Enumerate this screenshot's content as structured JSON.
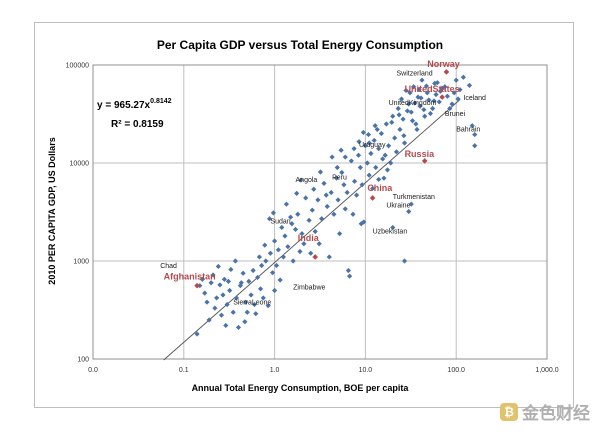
{
  "chart_data": {
    "type": "scatter",
    "title": "Per Capita GDP versus Total Energy Consumption",
    "xlabel": "Annual Total Energy Consumption, BOE per capita",
    "ylabel": "2010 PER CAPITA GDP, US Dollars",
    "xscale": "log",
    "yscale": "log",
    "xlim": [
      0.01,
      1000
    ],
    "ylim": [
      100,
      100000
    ],
    "x_ticks": [
      "0.0",
      "0.1",
      "1.0",
      "10.0",
      "100.0",
      "1,000.0"
    ],
    "y_ticks": [
      "100",
      "1000",
      "10000",
      "100000"
    ],
    "grid": true,
    "fit": {
      "a": 965.27,
      "b": 0.8142,
      "x_range": [
        0.06,
        110
      ]
    },
    "equation": {
      "prefix": "y = 965.27x",
      "exponent": "0.8142",
      "r2": "R² = 0.8159"
    },
    "colors": {
      "points": "#4a74a8",
      "highlight": "#b54a4e",
      "fit_line": "#555555",
      "grid": "#bfbfbf"
    },
    "points": [
      [
        0.14,
        180
      ],
      [
        0.15,
        560
      ],
      [
        0.16,
        650
      ],
      [
        0.17,
        470
      ],
      [
        0.18,
        380
      ],
      [
        0.19,
        250
      ],
      [
        0.2,
        600
      ],
      [
        0.22,
        330
      ],
      [
        0.23,
        420
      ],
      [
        0.25,
        570
      ],
      [
        0.26,
        280
      ],
      [
        0.28,
        650
      ],
      [
        0.3,
        360
      ],
      [
        0.32,
        500
      ],
      [
        0.35,
        300
      ],
      [
        0.38,
        420
      ],
      [
        0.4,
        210
      ],
      [
        0.42,
        560
      ],
      [
        0.45,
        750
      ],
      [
        0.48,
        380
      ],
      [
        0.5,
        300
      ],
      [
        0.52,
        620
      ],
      [
        0.55,
        450
      ],
      [
        0.58,
        800
      ],
      [
        0.6,
        360
      ],
      [
        0.65,
        680
      ],
      [
        0.7,
        520
      ],
      [
        0.72,
        900
      ],
      [
        0.75,
        420
      ],
      [
        0.8,
        1000
      ],
      [
        0.85,
        350
      ],
      [
        0.9,
        1200
      ],
      [
        0.95,
        760
      ],
      [
        1.0,
        500
      ],
      [
        1.0,
        1600
      ],
      [
        1.05,
        900
      ],
      [
        1.1,
        1300
      ],
      [
        1.15,
        640
      ],
      [
        1.2,
        2200
      ],
      [
        1.25,
        1100
      ],
      [
        1.3,
        1800
      ],
      [
        1.4,
        1400
      ],
      [
        1.5,
        2800
      ],
      [
        1.6,
        1000
      ],
      [
        1.7,
        2100
      ],
      [
        1.8,
        3000
      ],
      [
        1.9,
        1250
      ],
      [
        2.0,
        1900
      ],
      [
        2.1,
        1500
      ],
      [
        2.2,
        4400
      ],
      [
        2.4,
        2600
      ],
      [
        2.5,
        1200
      ],
      [
        2.6,
        3300
      ],
      [
        2.8,
        2000
      ],
      [
        3.0,
        4200
      ],
      [
        3.1,
        1500
      ],
      [
        3.3,
        2700
      ],
      [
        3.5,
        6200
      ],
      [
        3.8,
        3600
      ],
      [
        4.0,
        1100
      ],
      [
        4.2,
        5000
      ],
      [
        4.5,
        3000
      ],
      [
        4.8,
        7000
      ],
      [
        5.0,
        4200
      ],
      [
        5.2,
        1900
      ],
      [
        5.5,
        8000
      ],
      [
        5.8,
        6000
      ],
      [
        6.0,
        3400
      ],
      [
        6.3,
        5000
      ],
      [
        6.5,
        800
      ],
      [
        6.7,
        700
      ],
      [
        7.0,
        10500
      ],
      [
        7.3,
        3000
      ],
      [
        7.6,
        6500
      ],
      [
        8.0,
        4700
      ],
      [
        8.4,
        12000
      ],
      [
        8.8,
        9000
      ],
      [
        9.2,
        6000
      ],
      [
        9.6,
        2500
      ],
      [
        10.0,
        15000
      ],
      [
        10.5,
        10000
      ],
      [
        11.0,
        7500
      ],
      [
        11.5,
        12500
      ],
      [
        12.0,
        5500
      ],
      [
        12.5,
        17000
      ],
      [
        13.0,
        9000
      ],
      [
        14.0,
        14000
      ],
      [
        15.0,
        20000
      ],
      [
        15.5,
        11000
      ],
      [
        16.0,
        7000
      ],
      [
        17.0,
        25000
      ],
      [
        18.0,
        15000
      ],
      [
        19.0,
        10000
      ],
      [
        20.0,
        30000
      ],
      [
        21.0,
        18000
      ],
      [
        22.0,
        13000
      ],
      [
        23.0,
        36000
      ],
      [
        24.0,
        22000
      ],
      [
        25.0,
        45000
      ],
      [
        26.0,
        28000
      ],
      [
        27.0,
        16000
      ],
      [
        28.0,
        55000
      ],
      [
        30.0,
        40000
      ],
      [
        32.0,
        33000
      ],
      [
        34.0,
        60000
      ],
      [
        36.0,
        25000
      ],
      [
        38.0,
        47000
      ],
      [
        40.0,
        38000
      ],
      [
        42.0,
        70000
      ],
      [
        45.0,
        30000
      ],
      [
        48.0,
        52000
      ],
      [
        50.0,
        44000
      ],
      [
        55.0,
        36000
      ],
      [
        58.0,
        65000
      ],
      [
        60.0,
        50000
      ],
      [
        65.0,
        42000
      ],
      [
        70.0,
        58000
      ],
      [
        80.0,
        48000
      ],
      [
        90.0,
        40000
      ],
      [
        100.0,
        70000
      ],
      [
        110.0,
        56000
      ],
      [
        120.0,
        75000
      ],
      [
        140.0,
        62000
      ],
      [
        150.0,
        24000
      ],
      [
        160.0,
        15000
      ],
      [
        160.0,
        19500
      ],
      [
        27.0,
        1000
      ],
      [
        30.0,
        3200
      ],
      [
        32.0,
        3800
      ],
      [
        20.0,
        2200
      ],
      [
        14.0,
        6800
      ],
      [
        9.0,
        2400
      ],
      [
        11.0,
        16000
      ],
      [
        13.5,
        22000
      ],
      [
        16.5,
        12000
      ],
      [
        17.5,
        8500
      ],
      [
        19.5,
        26000
      ],
      [
        23.5,
        31000
      ],
      [
        26.5,
        19000
      ],
      [
        29.0,
        34000
      ],
      [
        31.0,
        52000
      ],
      [
        33.0,
        27000
      ],
      [
        35.0,
        41000
      ],
      [
        37.0,
        22000
      ],
      [
        39.0,
        56000
      ],
      [
        41.0,
        46000
      ],
      [
        44.0,
        35000
      ],
      [
        47.0,
        61000
      ],
      [
        52.0,
        32000
      ],
      [
        57.0,
        43000
      ],
      [
        62.0,
        66000
      ],
      [
        67.0,
        54000
      ],
      [
        75.0,
        60000
      ],
      [
        85.0,
        36000
      ],
      [
        95.0,
        52000
      ],
      [
        105.0,
        45000
      ],
      [
        6.0,
        11500
      ],
      [
        7.5,
        14000
      ],
      [
        8.5,
        16500
      ],
      [
        9.5,
        20500
      ],
      [
        10.8,
        19500
      ],
      [
        12.8,
        24000
      ],
      [
        2.7,
        5400
      ],
      [
        3.2,
        8100
      ],
      [
        3.7,
        4700
      ],
      [
        4.3,
        11500
      ],
      [
        4.9,
        9000
      ],
      [
        5.4,
        13500
      ],
      [
        0.88,
        2700
      ],
      [
        0.97,
        3100
      ],
      [
        1.35,
        3800
      ],
      [
        1.55,
        2400
      ],
      [
        1.75,
        4900
      ],
      [
        1.95,
        6700
      ],
      [
        0.33,
        820
      ],
      [
        0.37,
        1000
      ],
      [
        0.43,
        600
      ],
      [
        0.47,
        240
      ],
      [
        0.62,
        290
      ],
      [
        0.68,
        1100
      ],
      [
        0.21,
        720
      ],
      [
        0.24,
        880
      ],
      [
        0.27,
        450
      ],
      [
        0.29,
        220
      ],
      [
        0.31,
        620
      ],
      [
        0.78,
        1450
      ]
    ],
    "highlight_points": [
      {
        "name": "Afghanistan",
        "x": 0.14,
        "y": 560
      },
      {
        "name": "India",
        "x": 2.8,
        "y": 1100
      },
      {
        "name": "China",
        "x": 12.0,
        "y": 4400
      },
      {
        "name": "Russia",
        "x": 45.0,
        "y": 10500
      },
      {
        "name": "United States",
        "x": 70.0,
        "y": 47000
      },
      {
        "name": "Norway",
        "x": 78.0,
        "y": 85000
      }
    ],
    "labels": [
      {
        "text": "Norway",
        "x": 48,
        "y": 95000,
        "style": "red"
      },
      {
        "text": "Switzerland",
        "x": 22,
        "y": 78000,
        "style": "blue"
      },
      {
        "text": "UnitedStates",
        "x": 27,
        "y": 53000,
        "style": "red"
      },
      {
        "text": "UnitedKingdom",
        "x": 18,
        "y": 39000,
        "style": "blue"
      },
      {
        "text": "Iceland",
        "x": 120,
        "y": 44000,
        "style": "blue"
      },
      {
        "text": "Brunei",
        "x": 75,
        "y": 30000,
        "style": "blue"
      },
      {
        "text": "Bahrain",
        "x": 100,
        "y": 21000,
        "style": "blue"
      },
      {
        "text": "Uruguay",
        "x": 8.5,
        "y": 14500,
        "style": "blue"
      },
      {
        "text": "Russia",
        "x": 27,
        "y": 11500,
        "style": "red"
      },
      {
        "text": "Angola",
        "x": 1.7,
        "y": 6400,
        "style": "blue"
      },
      {
        "text": "Peru",
        "x": 4.3,
        "y": 6800,
        "style": "blue"
      },
      {
        "text": "China",
        "x": 10.5,
        "y": 5200,
        "style": "red"
      },
      {
        "text": "Turkmenistan",
        "x": 20,
        "y": 4300,
        "style": "blue"
      },
      {
        "text": "Ukraine",
        "x": 17,
        "y": 3500,
        "style": "blue"
      },
      {
        "text": "Sudan",
        "x": 0.9,
        "y": 2400,
        "style": "blue"
      },
      {
        "text": "India",
        "x": 1.8,
        "y": 1600,
        "style": "red"
      },
      {
        "text": "Uzbekistan",
        "x": 12,
        "y": 1900,
        "style": "blue"
      },
      {
        "text": "Chad",
        "x": 0.055,
        "y": 850,
        "style": "blue"
      },
      {
        "text": "Afghanistan",
        "x": 0.06,
        "y": 650,
        "style": "red"
      },
      {
        "text": "Zimbabwe",
        "x": 1.6,
        "y": 510,
        "style": "blue"
      },
      {
        "text": "SierraLeone",
        "x": 0.35,
        "y": 360,
        "style": "blue"
      }
    ]
  },
  "watermark": {
    "logo": "₿",
    "text": "金色财经"
  }
}
